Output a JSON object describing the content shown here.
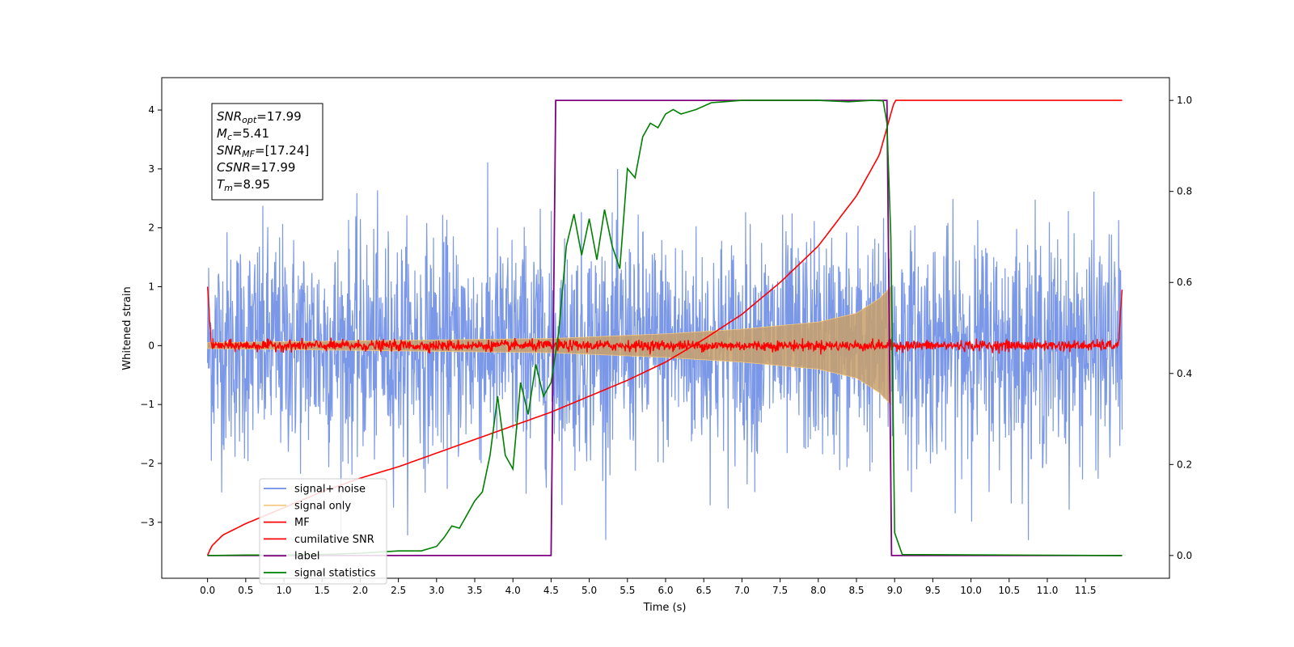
{
  "chart_data": {
    "type": "line",
    "xlabel": "Time (s)",
    "ylabel": "Whitened strain",
    "xlim": [
      -0.6,
      12.6
    ],
    "ylim_left": [
      -3.95,
      4.55
    ],
    "ylim_right": [
      -0.05,
      1.05
    ],
    "x_ticks": [
      0.0,
      0.5,
      1.0,
      1.5,
      2.0,
      2.5,
      3.0,
      3.5,
      4.0,
      4.5,
      5.0,
      5.5,
      6.0,
      6.5,
      7.0,
      7.5,
      8.0,
      8.5,
      9.0,
      9.5,
      10.0,
      10.5,
      11.0,
      11.5
    ],
    "x_tick_labels": [
      "0.0",
      "0.5",
      "1.0",
      "1.5",
      "2.0",
      "2.5",
      "3.0",
      "3.5",
      "4.0",
      "4.5",
      "5.0",
      "5.5",
      "6.0",
      "6.5",
      "7.0",
      "7.5",
      "8.0",
      "8.5",
      "9.0",
      "9.5",
      "10.0",
      "10.5",
      "11.0",
      "11.5"
    ],
    "y_left_ticks": [
      -3,
      -2,
      -1,
      0,
      1,
      2,
      3,
      4
    ],
    "y_left_tick_labels": [
      "−3",
      "−2",
      "−1",
      "0",
      "1",
      "2",
      "3",
      "4"
    ],
    "y_right_ticks": [
      0.0,
      0.2,
      0.4,
      0.6,
      0.8,
      1.0
    ],
    "y_right_tick_labels": [
      "0.0",
      "0.2",
      "0.4",
      "0.6",
      "0.8",
      "1.0"
    ],
    "grid": false,
    "legend_placement": "lower-left",
    "annotation_lines": [
      {
        "main": "SNR",
        "sub": "opt",
        "value": "=17.99"
      },
      {
        "main": "M",
        "sub": "c",
        "value": "=5.41"
      },
      {
        "main": "SNR",
        "sub": "MF",
        "value": "=[17.24]"
      },
      {
        "main": "CSNR",
        "sub": "",
        "value": "=17.99"
      },
      {
        "main": "T",
        "sub": "m",
        "value": "=8.95"
      }
    ],
    "series": [
      {
        "name": "signal+ noise",
        "axis": "left",
        "color": "#6b8ce6",
        "kind": "noise",
        "t_start": 0.0,
        "t_end": 11.98,
        "approx_peak_amplitude": 3.3
      },
      {
        "name": "signal only",
        "axis": "left",
        "color": "#f5c77a",
        "kind": "chirp-envelope",
        "t_start": 0.0,
        "t_merger": 8.95,
        "envelope_t": [
          0.0,
          4.5,
          6.0,
          7.0,
          8.0,
          8.5,
          8.8,
          8.95
        ],
        "envelope_amplitude": [
          0.05,
          0.12,
          0.2,
          0.28,
          0.4,
          0.55,
          0.8,
          1.0
        ]
      },
      {
        "name": "MF",
        "axis": "left",
        "color": "#ff0000",
        "kind": "noise",
        "t_start": 0.0,
        "t_end": 11.98,
        "approx_peak_amplitude": 0.15,
        "edge_values": [
          1.0,
          0.95
        ]
      },
      {
        "name": "cumilative SNR",
        "axis": "right",
        "color": "#ff0000",
        "x": [
          0.0,
          0.05,
          0.2,
          0.5,
          1.0,
          1.5,
          2.0,
          2.5,
          3.0,
          3.5,
          4.0,
          4.5,
          5.0,
          5.5,
          6.0,
          6.5,
          7.0,
          7.5,
          8.0,
          8.5,
          8.8,
          8.95,
          9.0,
          11.98
        ],
        "y": [
          0.0,
          0.02,
          0.045,
          0.07,
          0.105,
          0.14,
          0.17,
          0.195,
          0.225,
          0.255,
          0.285,
          0.315,
          0.35,
          0.385,
          0.425,
          0.475,
          0.53,
          0.6,
          0.68,
          0.79,
          0.88,
          0.97,
          1.0,
          1.0
        ]
      },
      {
        "name": "label",
        "axis": "right",
        "color": "#800080",
        "x": [
          0.0,
          4.5,
          4.56,
          8.9,
          8.96,
          11.98
        ],
        "y": [
          0.0,
          0.0,
          1.0,
          1.0,
          0.0,
          0.0
        ]
      },
      {
        "name": "signal statistics",
        "axis": "right",
        "color": "#008000",
        "x": [
          0.0,
          0.5,
          1.0,
          1.5,
          2.0,
          2.5,
          2.8,
          3.0,
          3.1,
          3.2,
          3.3,
          3.4,
          3.5,
          3.6,
          3.7,
          3.8,
          3.9,
          4.0,
          4.1,
          4.2,
          4.3,
          4.4,
          4.5,
          4.6,
          4.7,
          4.8,
          4.9,
          5.0,
          5.1,
          5.2,
          5.3,
          5.4,
          5.5,
          5.6,
          5.7,
          5.8,
          5.9,
          6.0,
          6.1,
          6.2,
          6.4,
          6.6,
          7.0,
          7.5,
          8.0,
          8.4,
          8.7,
          8.85,
          8.9,
          8.95,
          9.0,
          9.1,
          11.98
        ],
        "y": [
          0.0,
          0.001,
          0.001,
          0.002,
          0.005,
          0.01,
          0.01,
          0.02,
          0.04,
          0.065,
          0.06,
          0.09,
          0.12,
          0.14,
          0.22,
          0.35,
          0.22,
          0.19,
          0.38,
          0.31,
          0.42,
          0.35,
          0.38,
          0.49,
          0.68,
          0.75,
          0.66,
          0.74,
          0.65,
          0.76,
          0.68,
          0.63,
          0.85,
          0.83,
          0.92,
          0.95,
          0.94,
          0.97,
          0.98,
          0.97,
          0.98,
          0.995,
          1.0,
          1.0,
          1.0,
          0.997,
          1.0,
          0.999,
          0.95,
          0.7,
          0.05,
          0.002,
          0.0
        ]
      }
    ]
  }
}
